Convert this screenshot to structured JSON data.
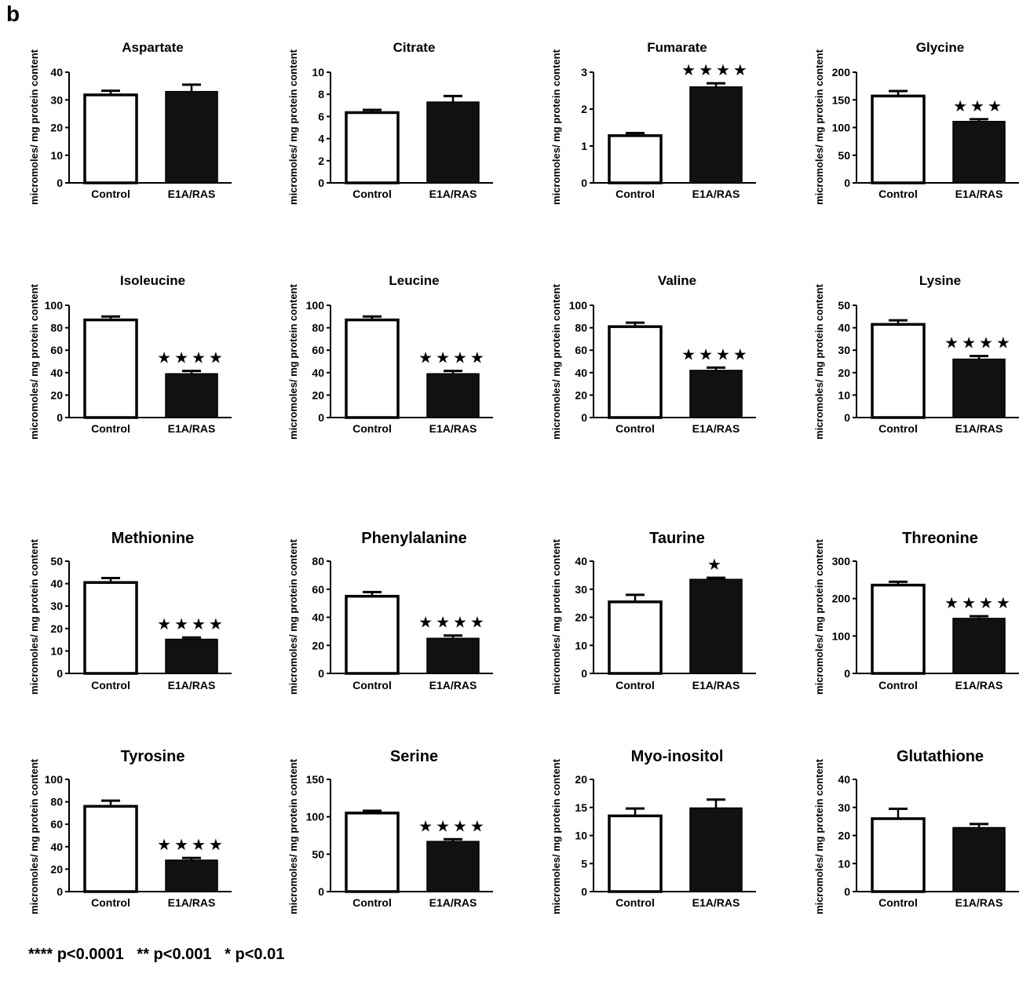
{
  "figure": {
    "panel_label": "b",
    "footnote": "**** p<0.0001   ** p<0.001   * p<0.01"
  },
  "colors": {
    "control_fill": "#ffffff",
    "treatment_fill": "#111111",
    "stroke": "#000000"
  },
  "chart_data": [
    {
      "type": "bar",
      "title": "Aspartate",
      "categories": [
        "Control",
        "E1A/RAS"
      ],
      "values": [
        31.8,
        33.0
      ],
      "errors": [
        1.5,
        2.5
      ],
      "ylabel": "micromoles/ mg protein content",
      "ylim": [
        0,
        40
      ],
      "yticks": [
        0,
        10,
        20,
        30,
        40
      ],
      "significance": ""
    },
    {
      "type": "bar",
      "title": "Citrate",
      "categories": [
        "Control",
        "E1A/RAS"
      ],
      "values": [
        6.35,
        7.3
      ],
      "errors": [
        0.25,
        0.55
      ],
      "ylabel": "micromoles/ mg protein content",
      "ylim": [
        0,
        10
      ],
      "yticks": [
        0,
        2,
        4,
        6,
        8,
        10
      ],
      "significance": ""
    },
    {
      "type": "bar",
      "title": "Fumarate",
      "categories": [
        "Control",
        "E1A/RAS"
      ],
      "values": [
        1.28,
        2.6
      ],
      "errors": [
        0.07,
        0.1
      ],
      "ylabel": "micromoles/ mg protein content",
      "ylim": [
        0,
        3
      ],
      "yticks": [
        0,
        1,
        2,
        3
      ],
      "significance": "★★★★"
    },
    {
      "type": "bar",
      "title": "Glycine",
      "categories": [
        "Control",
        "E1A/RAS"
      ],
      "values": [
        157,
        111
      ],
      "errors": [
        9,
        4
      ],
      "ylabel": "micromoles/ mg protein content",
      "ylim": [
        0,
        200
      ],
      "yticks": [
        0,
        50,
        100,
        150,
        200
      ],
      "significance": "★★★"
    },
    {
      "type": "bar",
      "title": "Isoleucine",
      "categories": [
        "Control",
        "E1A/RAS"
      ],
      "values": [
        87,
        39
      ],
      "errors": [
        3,
        2.5
      ],
      "ylabel": "micromoles/ mg protein content",
      "ylim": [
        0,
        100
      ],
      "yticks": [
        0,
        20,
        40,
        60,
        80,
        100
      ],
      "significance": "★★★★"
    },
    {
      "type": "bar",
      "title": "Leucine",
      "categories": [
        "Control",
        "E1A/RAS"
      ],
      "values": [
        87,
        39
      ],
      "errors": [
        3,
        2.5
      ],
      "ylabel": "micromoles/ mg protein content",
      "ylim": [
        0,
        100
      ],
      "yticks": [
        0,
        20,
        40,
        60,
        80,
        100
      ],
      "significance": "★★★★"
    },
    {
      "type": "bar",
      "title": "Valine",
      "categories": [
        "Control",
        "E1A/RAS"
      ],
      "values": [
        81,
        42
      ],
      "errors": [
        3.5,
        2.5
      ],
      "ylabel": "micromoles/ mg protein content",
      "ylim": [
        0,
        100
      ],
      "yticks": [
        0,
        20,
        40,
        60,
        80,
        100
      ],
      "significance": "★★★★"
    },
    {
      "type": "bar",
      "title": "Lysine",
      "categories": [
        "Control",
        "E1A/RAS"
      ],
      "values": [
        41.5,
        26
      ],
      "errors": [
        1.8,
        1.4
      ],
      "ylabel": "micromoles/ mg protein content",
      "ylim": [
        0,
        50
      ],
      "yticks": [
        0,
        10,
        20,
        30,
        40,
        50
      ],
      "significance": "★★★★"
    },
    {
      "type": "bar",
      "title": "Methionine",
      "categories": [
        "Control",
        "E1A/RAS"
      ],
      "values": [
        40.5,
        15.2
      ],
      "errors": [
        2,
        0.8
      ],
      "ylabel": "micromoles/ mg protein content",
      "ylim": [
        0,
        50
      ],
      "yticks": [
        0,
        10,
        20,
        30,
        40,
        50
      ],
      "significance": "★★★★"
    },
    {
      "type": "bar",
      "title": "Phenylalanine",
      "categories": [
        "Control",
        "E1A/RAS"
      ],
      "values": [
        55,
        25
      ],
      "errors": [
        3,
        2
      ],
      "ylabel": "micromoles/ mg protein content",
      "ylim": [
        0,
        80
      ],
      "yticks": [
        0,
        20,
        40,
        60,
        80
      ],
      "significance": "★★★★"
    },
    {
      "type": "bar",
      "title": "Taurine",
      "categories": [
        "Control",
        "E1A/RAS"
      ],
      "values": [
        25.5,
        33.5
      ],
      "errors": [
        2.5,
        0.6
      ],
      "ylabel": "micromoles/ mg protein content",
      "ylim": [
        0,
        40
      ],
      "yticks": [
        0,
        10,
        20,
        30,
        40
      ],
      "significance": "★"
    },
    {
      "type": "bar",
      "title": "Threonine",
      "categories": [
        "Control",
        "E1A/RAS"
      ],
      "values": [
        236,
        147
      ],
      "errors": [
        9,
        6
      ],
      "ylabel": "micromoles/ mg protein content",
      "ylim": [
        0,
        300
      ],
      "yticks": [
        0,
        100,
        200,
        300
      ],
      "significance": "★★★★"
    },
    {
      "type": "bar",
      "title": "Tyrosine",
      "categories": [
        "Control",
        "E1A/RAS"
      ],
      "values": [
        76,
        28
      ],
      "errors": [
        5,
        2
      ],
      "ylabel": "micromoles/ mg protein content",
      "ylim": [
        0,
        100
      ],
      "yticks": [
        0,
        20,
        40,
        60,
        80,
        100
      ],
      "significance": "★★★★"
    },
    {
      "type": "bar",
      "title": "Serine",
      "categories": [
        "Control",
        "E1A/RAS"
      ],
      "values": [
        105,
        67
      ],
      "errors": [
        3,
        3
      ],
      "ylabel": "micromoles/ mg protein content",
      "ylim": [
        0,
        150
      ],
      "yticks": [
        0,
        50,
        100,
        150
      ],
      "significance": "★★★★"
    },
    {
      "type": "bar",
      "title": "Myo-inositol",
      "categories": [
        "Control",
        "E1A/RAS"
      ],
      "values": [
        13.5,
        14.9
      ],
      "errors": [
        1.3,
        1.5
      ],
      "ylabel": "micromoles/ mg protein content",
      "ylim": [
        0,
        20
      ],
      "yticks": [
        0,
        5,
        10,
        15,
        20
      ],
      "significance": ""
    },
    {
      "type": "bar",
      "title": "Glutathione",
      "categories": [
        "Control",
        "E1A/RAS"
      ],
      "values": [
        26,
        22.8
      ],
      "errors": [
        3.5,
        1.3
      ],
      "ylabel": "micromoles/ mg protein content",
      "ylim": [
        0,
        40
      ],
      "yticks": [
        0,
        10,
        20,
        30,
        40
      ],
      "significance": ""
    }
  ]
}
